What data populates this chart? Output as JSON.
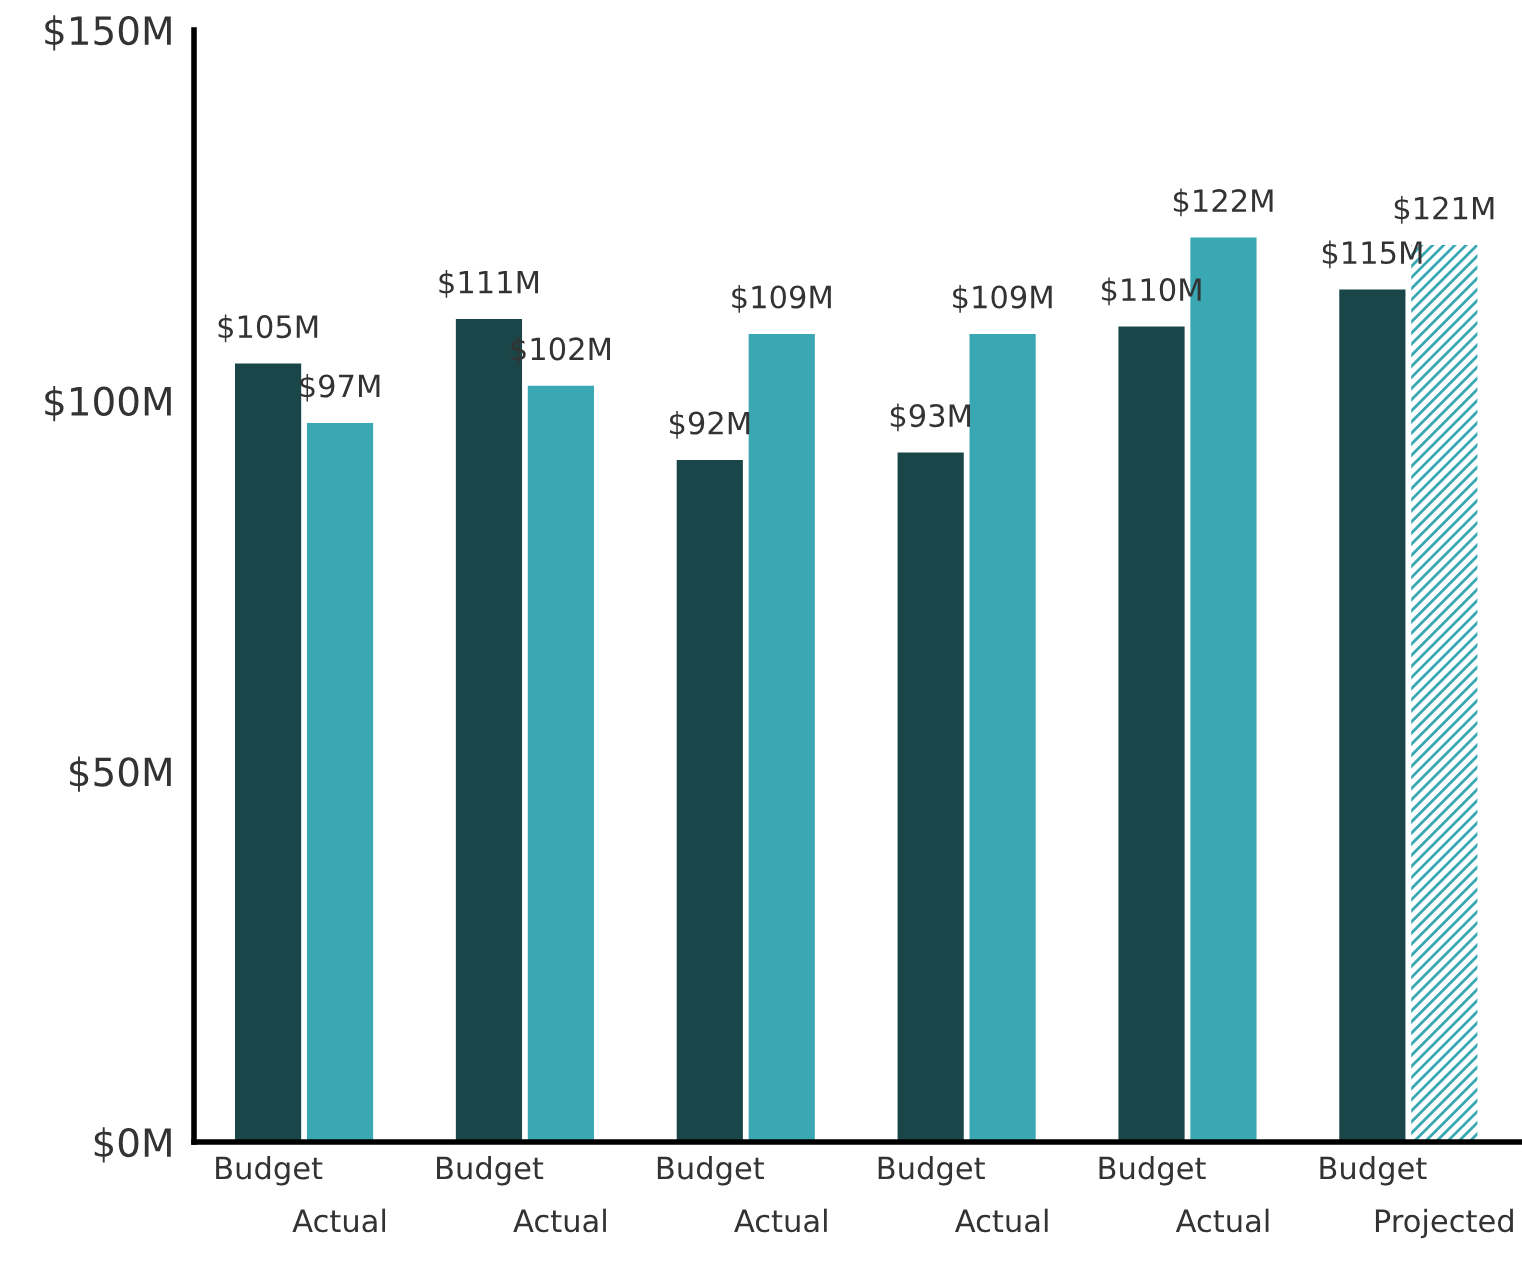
{
  "chart_data": {
    "type": "bar",
    "categories": [
      "Budget",
      "Actual",
      "Budget",
      "Actual",
      "Budget",
      "Actual",
      "Budget",
      "Actual",
      "Budget",
      "Actual",
      "Budget",
      "Projected"
    ],
    "series": [
      {
        "color": "#1b4649",
        "values": [
          105,
          null,
          111,
          null,
          92,
          null,
          93,
          null,
          110,
          null,
          115,
          null
        ],
        "value_labels": [
          "$105M",
          null,
          "$111M",
          null,
          "$92M",
          null,
          "$93M",
          null,
          "$110M",
          null,
          "$115M",
          null
        ]
      },
      {
        "color": "#39a8b3",
        "values": [
          null,
          97,
          null,
          102,
          null,
          109,
          null,
          109,
          null,
          122,
          null,
          null
        ],
        "value_labels": [
          null,
          "$97M",
          null,
          "$102M",
          null,
          "$109M",
          null,
          "$109M",
          null,
          "$122M",
          null,
          null
        ]
      },
      {
        "color": "#39a8b3",
        "values": [
          null,
          null,
          null,
          null,
          null,
          null,
          null,
          null,
          null,
          null,
          null,
          121
        ],
        "value_labels": [
          null,
          null,
          null,
          null,
          null,
          null,
          null,
          null,
          null,
          null,
          null,
          "$121M"
        ]
      }
    ],
    "ylim": [
      0,
      150
    ],
    "yticks": [
      {
        "value": 0,
        "label": "$0M"
      },
      {
        "value": 50,
        "label": "$50M"
      },
      {
        "value": 100,
        "label": "$100M"
      },
      {
        "value": 150,
        "label": "$150M"
      }
    ]
  }
}
